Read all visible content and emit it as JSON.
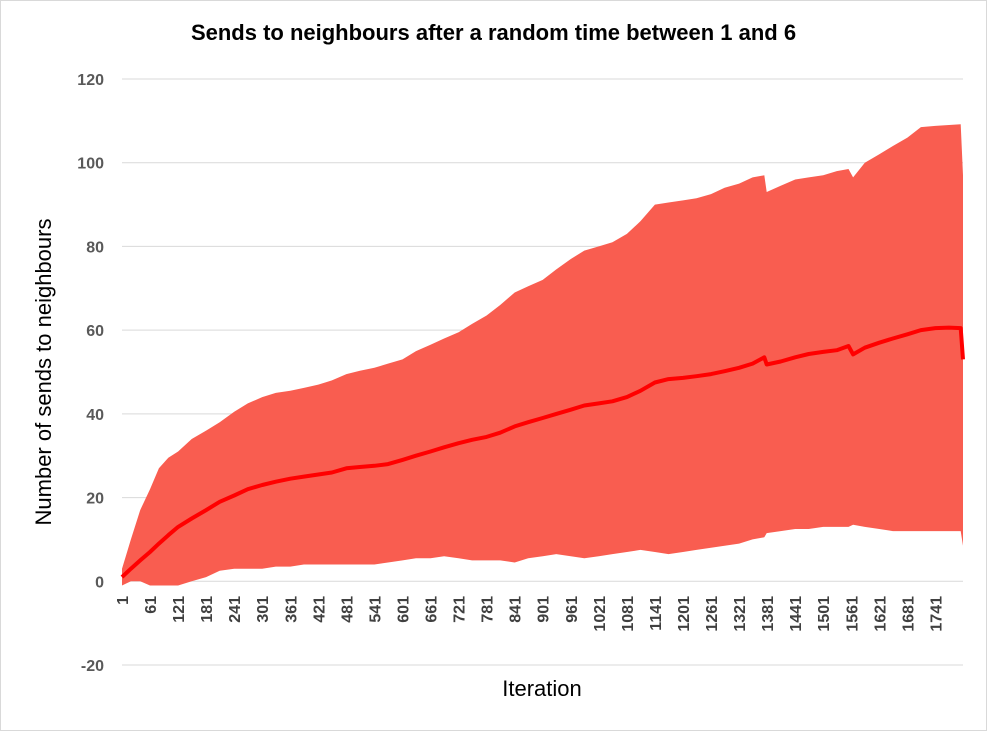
{
  "chart_data": {
    "type": "area",
    "title": "Sends to neighbours after a random time between 1 and 6",
    "xlabel": "Iteration",
    "ylabel": "Number of sends to neighbours",
    "ylim": [
      -20,
      120
    ],
    "xlim": [
      1,
      1800
    ],
    "yticks": [
      -20,
      0,
      20,
      40,
      60,
      80,
      100,
      120
    ],
    "xtick_labels": [
      "1",
      "61",
      "121",
      "181",
      "241",
      "301",
      "361",
      "421",
      "481",
      "541",
      "601",
      "661",
      "721",
      "781",
      "841",
      "901",
      "961",
      "1021",
      "1081",
      "1141",
      "1201",
      "1261",
      "1321",
      "1381",
      "1441",
      "1501",
      "1561",
      "1621",
      "1681",
      "1741"
    ],
    "grid": true,
    "colors": {
      "band": "#f95d50",
      "mean": "#ff0000",
      "grid": "#d9d9d9"
    },
    "x": [
      1,
      20,
      40,
      61,
      80,
      100,
      121,
      150,
      181,
      210,
      241,
      270,
      301,
      330,
      361,
      390,
      421,
      450,
      481,
      510,
      541,
      570,
      601,
      630,
      661,
      690,
      721,
      750,
      781,
      810,
      841,
      870,
      901,
      930,
      961,
      990,
      1021,
      1050,
      1081,
      1110,
      1141,
      1170,
      1201,
      1230,
      1261,
      1290,
      1321,
      1350,
      1375,
      1380,
      1410,
      1441,
      1470,
      1501,
      1530,
      1555,
      1565,
      1590,
      1621,
      1650,
      1681,
      1710,
      1741,
      1770,
      1795,
      1800
    ],
    "series": [
      {
        "values": [
          1,
          3,
          5,
          7,
          9,
          11,
          13,
          15,
          17,
          19,
          20.5,
          22,
          23,
          23.8,
          24.5,
          25,
          25.5,
          26,
          27,
          27.3,
          27.6,
          28,
          29,
          30,
          31,
          32,
          33,
          33.8,
          34.5,
          35.5,
          37,
          38,
          39,
          40,
          41,
          42,
          42.5,
          43,
          44,
          45.5,
          47.5,
          48.3,
          48.6,
          49,
          49.5,
          50.2,
          51,
          52,
          53.5,
          51.8,
          52.5,
          53.5,
          54.3,
          54.8,
          55.2,
          56.2,
          54.2,
          55.8,
          57,
          58,
          59,
          60,
          60.5,
          60.6,
          60.5,
          53
        ]
      },
      {
        "values": [
          3,
          10,
          17,
          22,
          27,
          29.5,
          31,
          34,
          36,
          38,
          40.5,
          42.5,
          44,
          45,
          45.5,
          46.2,
          47,
          48,
          49.5,
          50.3,
          51,
          52,
          53,
          55,
          56.5,
          58,
          59.5,
          61.5,
          63.5,
          66,
          69,
          70.5,
          72,
          74.5,
          77,
          79,
          80,
          81,
          83,
          86,
          90,
          90.5,
          91,
          91.5,
          92.5,
          94,
          95,
          96.5,
          97,
          93,
          94.5,
          96,
          96.5,
          97,
          98,
          98.5,
          96.5,
          100,
          102,
          104,
          106,
          108.5,
          108.8,
          109,
          109.2,
          97
        ]
      },
      {
        "values": [
          -1,
          0,
          0,
          -1,
          -1,
          -1,
          -1,
          0,
          1,
          2.5,
          3,
          3,
          3,
          3.5,
          3.5,
          4,
          4,
          4,
          4,
          4,
          4,
          4.5,
          5,
          5.5,
          5.5,
          6,
          5.5,
          5,
          5,
          5,
          4.5,
          5.5,
          6,
          6.5,
          6,
          5.5,
          6,
          6.5,
          7,
          7.5,
          7,
          6.5,
          7,
          7.5,
          8,
          8.5,
          9,
          10,
          10.5,
          11.5,
          12,
          12.5,
          12.5,
          13,
          13,
          13,
          13.5,
          13,
          12.5,
          12,
          12,
          12,
          12,
          12,
          12,
          8.5
        ]
      }
    ]
  }
}
